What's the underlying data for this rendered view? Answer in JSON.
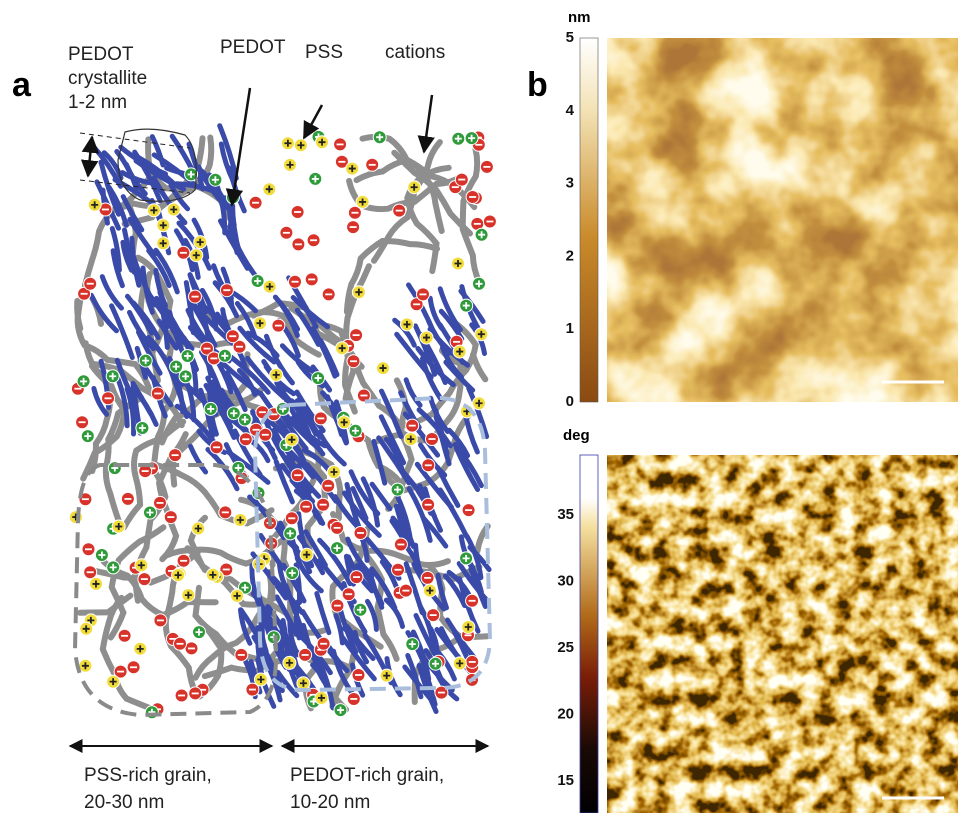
{
  "panel_a": {
    "label": "a",
    "crystallite_label": [
      "PEDOT",
      "crystallite",
      "1-2 nm"
    ],
    "pedot_label": "PEDOT",
    "pss_label": "PSS",
    "cations_label": "cations",
    "pss_grain_label": [
      "PSS-rich grain,",
      "20-30 nm"
    ],
    "pedot_grain_label": [
      "PEDOT-rich grain,",
      "10-20 nm"
    ]
  },
  "panel_b": {
    "label": "b",
    "height_scale": {
      "unit": "nm",
      "range": [
        0,
        5
      ],
      "ticks": [
        0,
        1,
        2,
        3,
        4,
        5
      ]
    },
    "phase_scale": {
      "unit": "deg",
      "range": [
        12.6,
        39.5
      ],
      "ticks": [
        15,
        20,
        25,
        30,
        35
      ]
    }
  }
}
